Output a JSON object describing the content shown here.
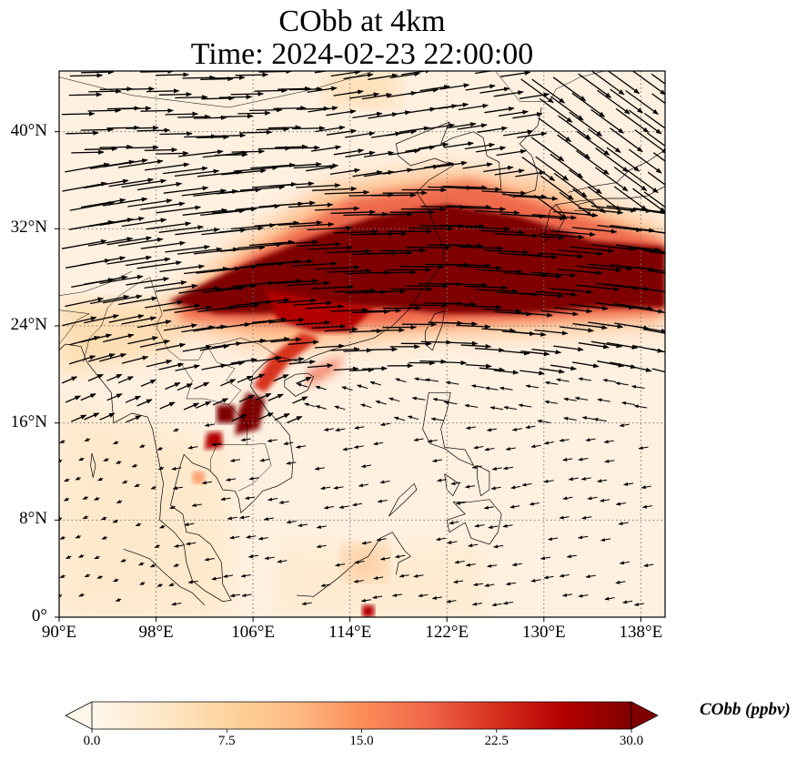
{
  "title": {
    "line1": "CObb at 4km",
    "line2": "Time: 2024-02-23 22:00:00"
  },
  "map": {
    "projection": "PlateCarree",
    "lon_range": [
      90,
      140
    ],
    "lat_range": [
      0,
      45
    ],
    "gridlines": "dotted",
    "x_ticks": [
      {
        "value": 90,
        "label": "90°E"
      },
      {
        "value": 98,
        "label": "98°E"
      },
      {
        "value": 106,
        "label": "106°E"
      },
      {
        "value": 114,
        "label": "114°E"
      },
      {
        "value": 122,
        "label": "122°E"
      },
      {
        "value": 130,
        "label": "130°E"
      },
      {
        "value": 138,
        "label": "138°E"
      }
    ],
    "y_ticks": [
      {
        "value": 0,
        "label": "0°"
      },
      {
        "value": 8,
        "label": "8°N"
      },
      {
        "value": 16,
        "label": "16°N"
      },
      {
        "value": 24,
        "label": "24°N"
      },
      {
        "value": 32,
        "label": "32°N"
      },
      {
        "value": 40,
        "label": "40°N"
      }
    ],
    "field": "CObb",
    "overlay": "wind vectors (quiver)",
    "plume_description": "Dense band >30 ppbv stretching from ~99°E,26°N east-northeast through 110-140°E between ~25-34°N; secondary hotspots over Indochina near 103-107°E, 14-21°N"
  },
  "colorbar": {
    "label": "CObb (ppbv)",
    "min": 0.0,
    "max": 30.0,
    "extend": "both",
    "colormap": "OrRd",
    "ticks": [
      "0.0",
      "7.5",
      "15.0",
      "22.5",
      "30.0"
    ],
    "tick_values": [
      0.0,
      7.5,
      15.0,
      22.5,
      30.0
    ],
    "colors": [
      "#fff7ec",
      "#fee8c8",
      "#fdd49e",
      "#fdbb84",
      "#fc8d59",
      "#ef6548",
      "#d7301f",
      "#b30000",
      "#7f0000"
    ]
  },
  "chart_data": {
    "type": "heatmap",
    "title": "CObb at 4km\nTime: 2024-02-23 22:00:00",
    "xlabel": "",
    "ylabel": "",
    "x_range": [
      90,
      140
    ],
    "y_range": [
      0,
      45
    ],
    "x_tick_labels": [
      "90°E",
      "98°E",
      "106°E",
      "114°E",
      "122°E",
      "130°E",
      "138°E"
    ],
    "y_tick_labels": [
      "0°",
      "8°N",
      "16°N",
      "24°N",
      "32°N",
      "40°N"
    ],
    "colorbar_label": "CObb (ppbv)",
    "colorbar_range": [
      0,
      30
    ],
    "colorbar_ticks": [
      0.0,
      7.5,
      15.0,
      22.5,
      30.0
    ],
    "grid": true,
    "plume_regions": [
      {
        "name": "main-plume-core",
        "lon": [
          108,
          140
        ],
        "lat": [
          25,
          33
        ],
        "approx_value": 30
      },
      {
        "name": "plume-west-tail",
        "lon": [
          99,
          110
        ],
        "lat": [
          24,
          29
        ],
        "approx_value": 28
      },
      {
        "name": "north-fringe",
        "lon": [
          108,
          130
        ],
        "lat": [
          33,
          37
        ],
        "approx_value": 15
      },
      {
        "name": "indochina-hotspot-1",
        "lon": [
          103,
          104.5
        ],
        "lat": [
          16,
          17.5
        ],
        "approx_value": 30
      },
      {
        "name": "indochina-hotspot-2",
        "lon": [
          104.5,
          107
        ],
        "lat": [
          15,
          18
        ],
        "approx_value": 30
      },
      {
        "name": "indochina-hotspot-3",
        "lon": [
          102,
          103.5
        ],
        "lat": [
          13.5,
          15
        ],
        "approx_value": 28
      },
      {
        "name": "vietnam-coast-streak",
        "lon": [
          106,
          111
        ],
        "lat": [
          19,
          23
        ],
        "approx_value": 25
      },
      {
        "name": "south-china-sea-spot",
        "lon": [
          115,
          116
        ],
        "lat": [
          0,
          1
        ],
        "approx_value": 25
      }
    ],
    "wind_regime": [
      {
        "region": "north of 20N",
        "direction": "westerly / west-southwesterly",
        "strength": "strong"
      },
      {
        "region": "Japan / northeast",
        "direction": "northwesterly",
        "strength": "strong"
      },
      {
        "region": "south of 18N",
        "direction": "easterly / northeasterly",
        "strength": "weak"
      }
    ]
  }
}
